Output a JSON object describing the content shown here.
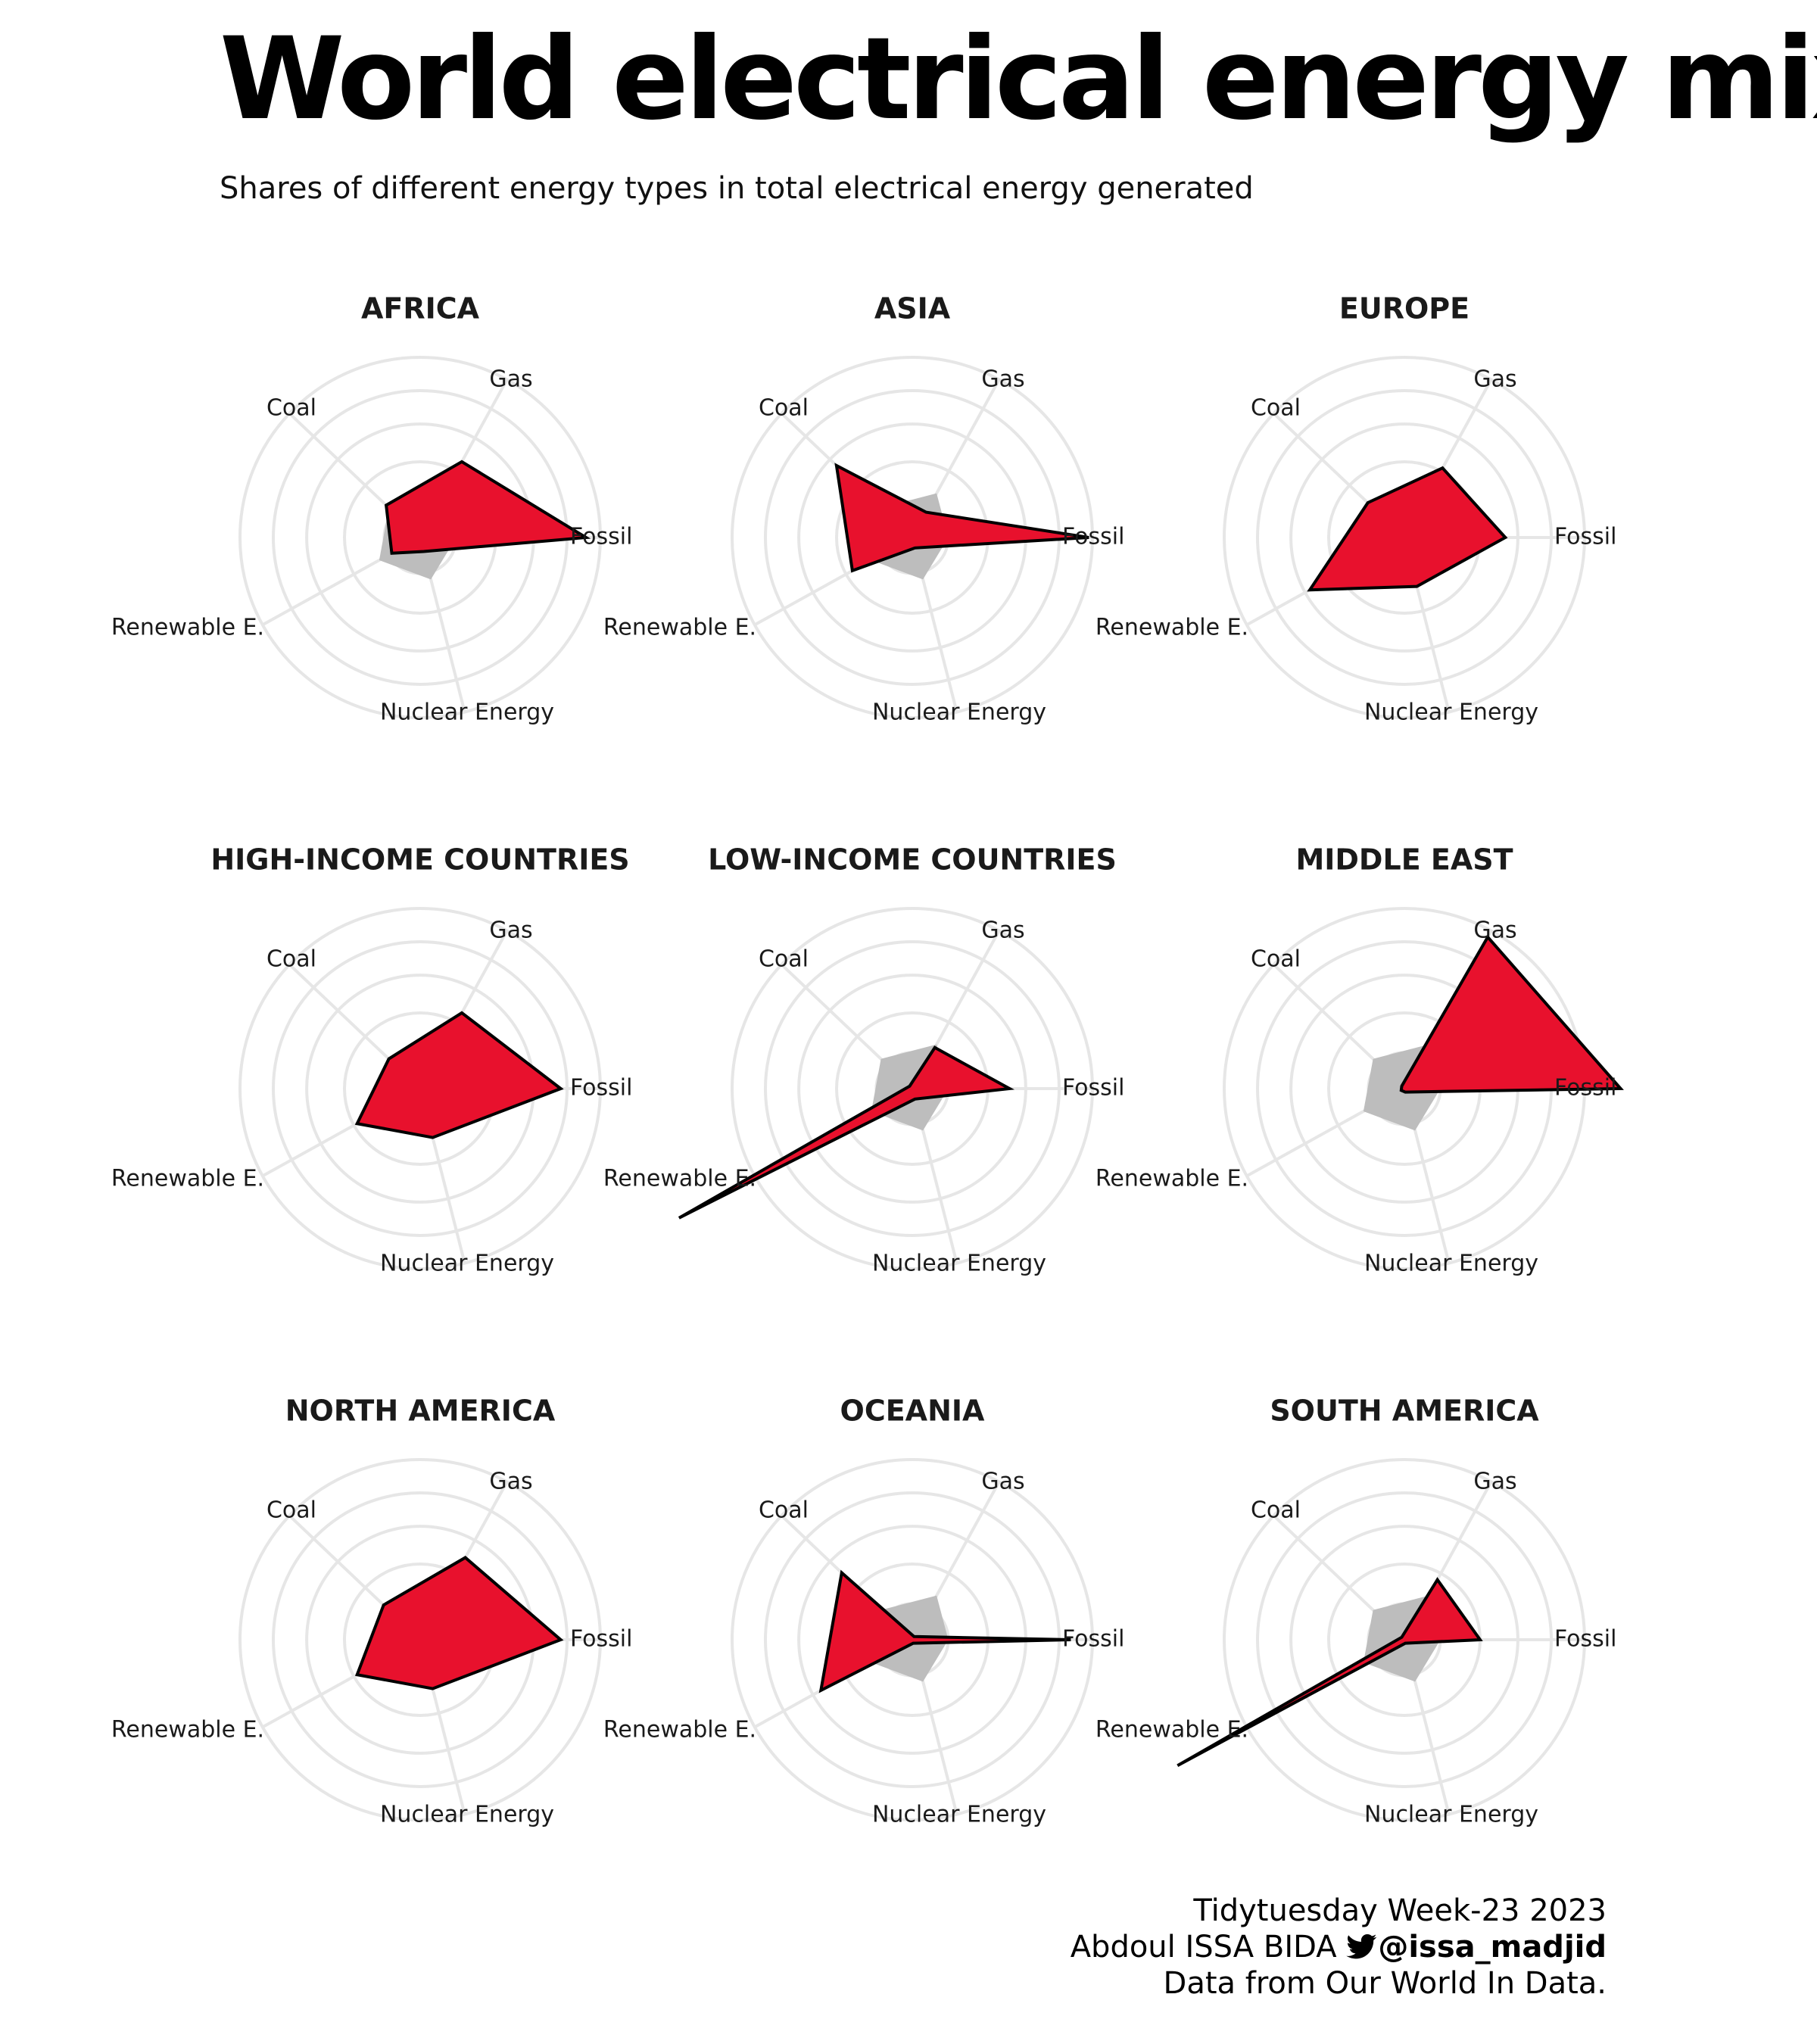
{
  "title": "World electrical energy mix",
  "subtitle": "Shares of different energy types in total electrical energy generated",
  "caption": {
    "line1": "Tidytuesday Week-23 2023",
    "author": "Abdoul ISSA BIDA",
    "handle": "@issa_madjid",
    "line3": "Data from Our World In Data."
  },
  "colors": {
    "highlight": "#e8112d",
    "reference": "#bdbdbd",
    "grid": "#e6e6e6"
  },
  "chart_data": {
    "type": "radar",
    "axes": [
      "Fossil",
      "Gas",
      "Coal",
      "Renewable E.",
      "Nuclear Energy"
    ],
    "rlim": [
      0,
      5
    ],
    "reference_profile": [
      1,
      1.4,
      1.2,
      1.3,
      1.2
    ],
    "panels": [
      {
        "name": "AFRICA",
        "values": [
          4.6,
          2.4,
          1.3,
          0.9,
          0.4
        ]
      },
      {
        "name": "ASIA",
        "values": [
          4.9,
          0.8,
          2.9,
          1.9,
          0.3
        ]
      },
      {
        "name": "EUROPE",
        "values": [
          2.8,
          2.2,
          1.4,
          3.0,
          1.4
        ]
      },
      {
        "name": "HIGH-INCOME COUNTRIES",
        "values": [
          3.9,
          2.4,
          1.2,
          2.0,
          1.4
        ]
      },
      {
        "name": "LOW-INCOME COUNTRIES",
        "values": [
          2.7,
          1.3,
          0.1,
          7.4,
          0.3
        ]
      },
      {
        "name": "MIDDLE EAST",
        "values": [
          6.0,
          4.8,
          0.1,
          0.1,
          0.1
        ]
      },
      {
        "name": "NORTH AMERICA",
        "values": [
          3.9,
          2.6,
          1.4,
          2.0,
          1.4
        ]
      },
      {
        "name": "OCEANIA",
        "values": [
          4.4,
          0.1,
          2.7,
          2.9,
          0.1
        ]
      },
      {
        "name": "SOUTH AMERICA",
        "values": [
          2.1,
          1.9,
          0.1,
          7.2,
          0.1
        ]
      }
    ]
  }
}
